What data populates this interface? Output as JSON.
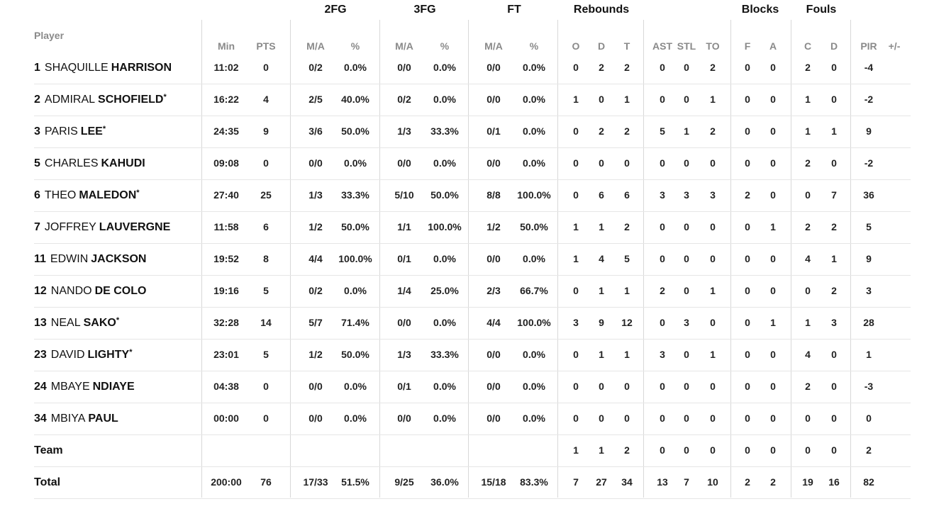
{
  "headers": {
    "player": "Player",
    "groups": [
      "2FG",
      "3FG",
      "FT",
      "Rebounds",
      "Blocks",
      "Fouls"
    ],
    "columns": [
      "Min",
      "PTS",
      "M/A",
      "%",
      "M/A",
      "%",
      "M/A",
      "%",
      "O",
      "D",
      "T",
      "AST",
      "STL",
      "TO",
      "F",
      "A",
      "C",
      "D",
      "PIR",
      "+/-"
    ]
  },
  "players": [
    {
      "num": "1",
      "first": "SHAQUILLE",
      "last": "HARRISON",
      "star": "",
      "stats": [
        "11:02",
        "0",
        "0/2",
        "0.0%",
        "0/0",
        "0.0%",
        "0/0",
        "0.0%",
        "0",
        "2",
        "2",
        "0",
        "0",
        "2",
        "0",
        "0",
        "2",
        "0",
        "-4",
        ""
      ]
    },
    {
      "num": "2",
      "first": "ADMIRAL",
      "last": "SCHOFIELD",
      "star": "*",
      "stats": [
        "16:22",
        "4",
        "2/5",
        "40.0%",
        "0/2",
        "0.0%",
        "0/0",
        "0.0%",
        "1",
        "0",
        "1",
        "0",
        "0",
        "1",
        "0",
        "0",
        "1",
        "0",
        "-2",
        ""
      ]
    },
    {
      "num": "3",
      "first": "PARIS",
      "last": "LEE",
      "star": "*",
      "stats": [
        "24:35",
        "9",
        "3/6",
        "50.0%",
        "1/3",
        "33.3%",
        "0/1",
        "0.0%",
        "0",
        "2",
        "2",
        "5",
        "1",
        "2",
        "0",
        "0",
        "1",
        "1",
        "9",
        ""
      ]
    },
    {
      "num": "5",
      "first": "CHARLES",
      "last": "KAHUDI",
      "star": "",
      "stats": [
        "09:08",
        "0",
        "0/0",
        "0.0%",
        "0/0",
        "0.0%",
        "0/0",
        "0.0%",
        "0",
        "0",
        "0",
        "0",
        "0",
        "0",
        "0",
        "0",
        "2",
        "0",
        "-2",
        ""
      ]
    },
    {
      "num": "6",
      "first": "THEO",
      "last": "MALEDON",
      "star": "*",
      "stats": [
        "27:40",
        "25",
        "1/3",
        "33.3%",
        "5/10",
        "50.0%",
        "8/8",
        "100.0%",
        "0",
        "6",
        "6",
        "3",
        "3",
        "3",
        "2",
        "0",
        "0",
        "7",
        "36",
        ""
      ]
    },
    {
      "num": "7",
      "first": "JOFFREY",
      "last": "LAUVERGNE",
      "star": "",
      "stats": [
        "11:58",
        "6",
        "1/2",
        "50.0%",
        "1/1",
        "100.0%",
        "1/2",
        "50.0%",
        "1",
        "1",
        "2",
        "0",
        "0",
        "0",
        "0",
        "1",
        "2",
        "2",
        "5",
        ""
      ]
    },
    {
      "num": "11",
      "first": "EDWIN",
      "last": "JACKSON",
      "star": "",
      "stats": [
        "19:52",
        "8",
        "4/4",
        "100.0%",
        "0/1",
        "0.0%",
        "0/0",
        "0.0%",
        "1",
        "4",
        "5",
        "0",
        "0",
        "0",
        "0",
        "0",
        "4",
        "1",
        "9",
        ""
      ]
    },
    {
      "num": "12",
      "first": "NANDO",
      "last": "DE COLO",
      "star": "",
      "stats": [
        "19:16",
        "5",
        "0/2",
        "0.0%",
        "1/4",
        "25.0%",
        "2/3",
        "66.7%",
        "0",
        "1",
        "1",
        "2",
        "0",
        "1",
        "0",
        "0",
        "0",
        "2",
        "3",
        ""
      ]
    },
    {
      "num": "13",
      "first": "NEAL",
      "last": "SAKO",
      "star": "*",
      "stats": [
        "32:28",
        "14",
        "5/7",
        "71.4%",
        "0/0",
        "0.0%",
        "4/4",
        "100.0%",
        "3",
        "9",
        "12",
        "0",
        "3",
        "0",
        "0",
        "1",
        "1",
        "3",
        "28",
        ""
      ]
    },
    {
      "num": "23",
      "first": "DAVID",
      "last": "LIGHTY",
      "star": "*",
      "stats": [
        "23:01",
        "5",
        "1/2",
        "50.0%",
        "1/3",
        "33.3%",
        "0/0",
        "0.0%",
        "0",
        "1",
        "1",
        "3",
        "0",
        "1",
        "0",
        "0",
        "4",
        "0",
        "1",
        ""
      ]
    },
    {
      "num": "24",
      "first": "MBAYE",
      "last": "NDIAYE",
      "star": "",
      "stats": [
        "04:38",
        "0",
        "0/0",
        "0.0%",
        "0/1",
        "0.0%",
        "0/0",
        "0.0%",
        "0",
        "0",
        "0",
        "0",
        "0",
        "0",
        "0",
        "0",
        "2",
        "0",
        "-3",
        ""
      ]
    },
    {
      "num": "34",
      "first": "MBIYA",
      "last": "PAUL",
      "star": "",
      "stats": [
        "00:00",
        "0",
        "0/0",
        "0.0%",
        "0/0",
        "0.0%",
        "0/0",
        "0.0%",
        "0",
        "0",
        "0",
        "0",
        "0",
        "0",
        "0",
        "0",
        "0",
        "0",
        "0",
        ""
      ]
    }
  ],
  "team": {
    "label": "Team",
    "stats": [
      "",
      "",
      "",
      "",
      "",
      "",
      "",
      "",
      "1",
      "1",
      "2",
      "0",
      "0",
      "0",
      "0",
      "0",
      "0",
      "0",
      "2",
      ""
    ]
  },
  "total": {
    "label": "Total",
    "stats": [
      "200:00",
      "76",
      "17/33",
      "51.5%",
      "9/25",
      "36.0%",
      "15/18",
      "83.3%",
      "7",
      "27",
      "34",
      "13",
      "7",
      "10",
      "2",
      "2",
      "19",
      "16",
      "82",
      ""
    ]
  }
}
